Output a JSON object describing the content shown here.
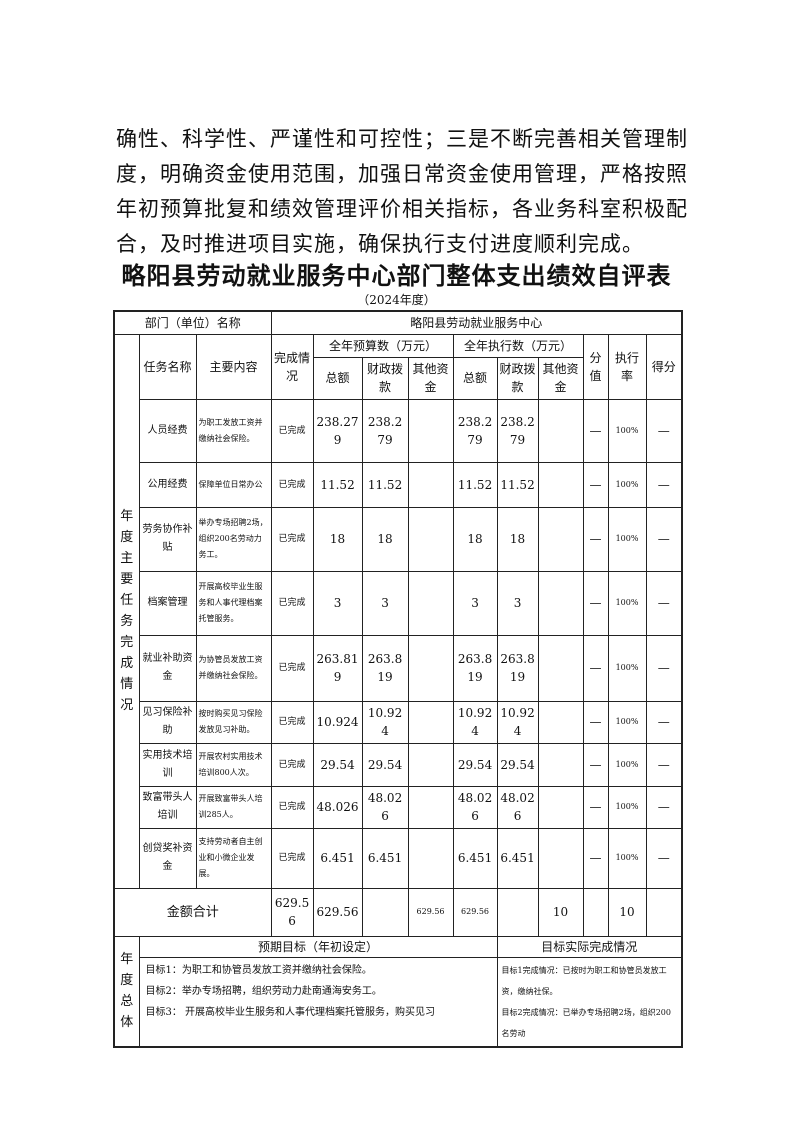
{
  "paragraph": [
    "确性、科学性、严谨性和可控性；三是不断完善相关管理制",
    "度，明确资金使用范围，加强日常资金使用管理，严格按照",
    "年初预算批复和绩效管理评价相关指标，各业务科室积极配",
    "合，及时推进项目实施，确保执行支付进度顺利完成。"
  ],
  "title": "略阳县劳动就业服务中心部门整体支出绩效自评表",
  "subtitle": "（2024年度）",
  "table": {
    "dept_label": "部门（单位）名称",
    "dept_value": "略阳县劳动就业服务中心",
    "section_label": "年度主要任务完成情况",
    "headers": {
      "task": "任务名称",
      "content": "主要内容",
      "status": "完成情况",
      "budget": "全年预算数（万元）",
      "exec": "全年执行数（万元）",
      "total": "总额",
      "fiscal": "财政拨款",
      "other": "其他资金",
      "score_value": "分值",
      "exec_rate": "执行率",
      "score": "得分"
    },
    "rows": [
      {
        "task": "人员经费",
        "content": "为职工发放工资并缴纳社会保险。",
        "status": "已完成",
        "b_total": "238.279",
        "b_fiscal": "238.279",
        "b_other": "",
        "e_total": "238.279",
        "e_fiscal": "238.279",
        "e_other": "",
        "value": "—",
        "rate": "100%",
        "score": "—"
      },
      {
        "task": "公用经费",
        "content": "保障单位日常办公",
        "status": "已完成",
        "b_total": "11.52",
        "b_fiscal": "11.52",
        "b_other": "",
        "e_total": "11.52",
        "e_fiscal": "11.52",
        "e_other": "",
        "value": "—",
        "rate": "100%",
        "score": "—"
      },
      {
        "task": "劳务协作补贴",
        "content": "举办专场招聘2场，组织200名劳动力务工。",
        "status": "已完成",
        "b_total": "18",
        "b_fiscal": "18",
        "b_other": "",
        "e_total": "18",
        "e_fiscal": "18",
        "e_other": "",
        "value": "—",
        "rate": "100%",
        "score": "—"
      },
      {
        "task": "档案管理",
        "content": "开展高校毕业生服务和人事代理档案托管服务。",
        "status": "已完成",
        "b_total": "3",
        "b_fiscal": "3",
        "b_other": "",
        "e_total": "3",
        "e_fiscal": "3",
        "e_other": "",
        "value": "—",
        "rate": "100%",
        "score": "—"
      },
      {
        "task": "就业补助资金",
        "content": "为协管员发放工资并缴纳社会保险。",
        "status": "已完成",
        "b_total": "263.819",
        "b_fiscal": "263.819",
        "b_other": "",
        "e_total": "263.819",
        "e_fiscal": "263.819",
        "e_other": "",
        "value": "—",
        "rate": "100%",
        "score": "—"
      },
      {
        "task": "见习保险补助",
        "content": "按时购买见习保险发放见习补助。",
        "status": "已完成",
        "b_total": "10.924",
        "b_fiscal": "10.924",
        "b_other": "",
        "e_total": "10.924",
        "e_fiscal": "10.924",
        "e_other": "",
        "value": "—",
        "rate": "100%",
        "score": "—"
      },
      {
        "task": "实用技术培训",
        "content": "开展农村实用技术培训800人次。",
        "status": "已完成",
        "b_total": "29.54",
        "b_fiscal": "29.54",
        "b_other": "",
        "e_total": "29.54",
        "e_fiscal": "29.54",
        "e_other": "",
        "value": "—",
        "rate": "100%",
        "score": "—"
      },
      {
        "task": "致富带头人培训",
        "content": "开展致富带头人培训285人。",
        "status": "已完成",
        "b_total": "48.026",
        "b_fiscal": "48.026",
        "b_other": "",
        "e_total": "48.026",
        "e_fiscal": "48.026",
        "e_other": "",
        "value": "—",
        "rate": "100%",
        "score": "—"
      },
      {
        "task": "创贷奖补资金",
        "content": "支持劳动者自主创业和小微企业发展。",
        "status": "已完成",
        "b_total": "6.451",
        "b_fiscal": "6.451",
        "b_other": "",
        "e_total": "6.451",
        "e_fiscal": "6.451",
        "e_other": "",
        "value": "—",
        "rate": "100%",
        "score": "—"
      }
    ],
    "total_row": {
      "label": "金额合计",
      "b_total": "629.56",
      "b_fiscal": "629.56",
      "b_other": "",
      "e_total": "629.56",
      "e_fiscal": "629.56",
      "e_other": "",
      "value": "10",
      "rate": "",
      "score": "10"
    },
    "overall_label": "年度总体",
    "goal_header": "预期目标（年初设定）",
    "actual_header": "目标实际完成情况",
    "goals": [
      "目标1：为职工和协管员发放工资并缴纳社会保险。",
      "目标2：举办专场招聘，组织劳动力赴南通海安务工。",
      "目标3： 开展高校毕业生服务和人事代理档案托管服务，购买见习"
    ],
    "actuals": [
      "目标1完成情况：已按时为职工和协管员发放工资，缴纳社保。",
      "目标2完成情况：已举办专场招聘2场，组织200名劳动"
    ]
  }
}
